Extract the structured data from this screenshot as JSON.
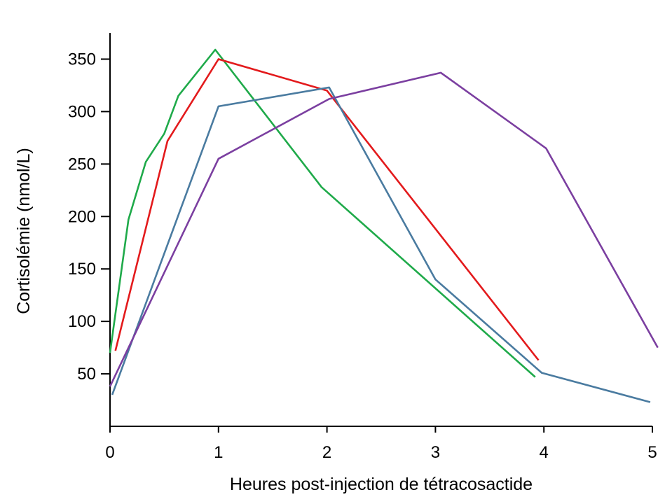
{
  "chart_data": {
    "type": "line",
    "title": "",
    "xlabel": "Heures post-injection de tétracosactide",
    "ylabel": "Cortisolémie (nmol/L)",
    "xlim": [
      0,
      5
    ],
    "ylim": [
      0,
      375
    ],
    "x_ticks": [
      0,
      1,
      2,
      3,
      4,
      5
    ],
    "y_ticks": [
      50,
      100,
      150,
      200,
      250,
      300,
      350
    ],
    "grid": false,
    "legend": "none",
    "series": [
      {
        "color": "#1faa4a",
        "x": [
          0,
          0.17,
          0.33,
          0.5,
          0.63,
          0.97,
          1.95,
          3.92
        ],
        "y": [
          70,
          197,
          252,
          279,
          315,
          359,
          228,
          47
        ]
      },
      {
        "color": "#e31a1c",
        "x": [
          0.05,
          0.53,
          1.0,
          2.0,
          3.95
        ],
        "y": [
          72,
          272,
          350,
          320,
          63
        ]
      },
      {
        "color": "#4a7ba0",
        "x": [
          0.02,
          1.0,
          2.02,
          3.0,
          3.98,
          4.98
        ],
        "y": [
          30,
          305,
          323,
          140,
          51,
          23
        ]
      },
      {
        "color": "#7b3fa0",
        "x": [
          0,
          1.0,
          2.02,
          3.05,
          4.02,
          5.05
        ],
        "y": [
          38,
          255,
          312,
          337,
          265,
          75
        ]
      }
    ]
  }
}
